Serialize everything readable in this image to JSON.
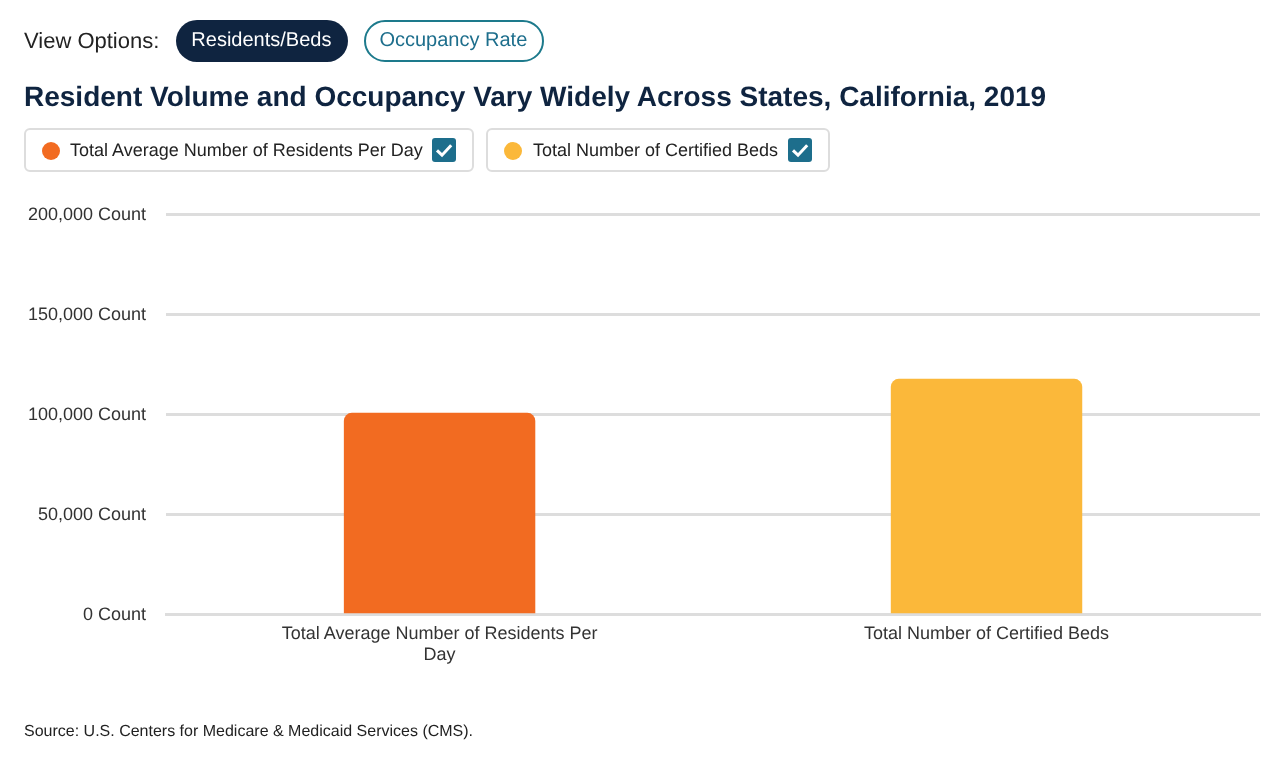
{
  "chart_data": {
    "type": "bar",
    "title": "Resident Volume and Occupancy Vary Widely Across States, California, 2019",
    "categories": [
      "Total Average Number of Residents Per Day",
      "Total Number of Certified Beds"
    ],
    "series": [
      {
        "name": "Total Average Number of Residents Per Day",
        "color": "#f26b21",
        "values": [
          101000,
          null
        ]
      },
      {
        "name": "Total Number of Certified Beds",
        "color": "#fbb83a",
        "values": [
          null,
          118000
        ]
      }
    ],
    "ylim": [
      0,
      200000
    ],
    "yticks": [
      {
        "value": 0,
        "label": "0 Count"
      },
      {
        "value": 50000,
        "label": "50,000 Count"
      },
      {
        "value": 100000,
        "label": "100,000 Count"
      },
      {
        "value": 150000,
        "label": "150,000 Count"
      },
      {
        "value": 200000,
        "label": "200,000 Count"
      }
    ],
    "grid": "y",
    "legend": "top left",
    "annotations": [
      "View Options:",
      "Residents/Beds",
      "Occupancy Rate",
      "Source: U.S. Centers for Medicare & Medicaid Services (CMS)."
    ]
  }
}
